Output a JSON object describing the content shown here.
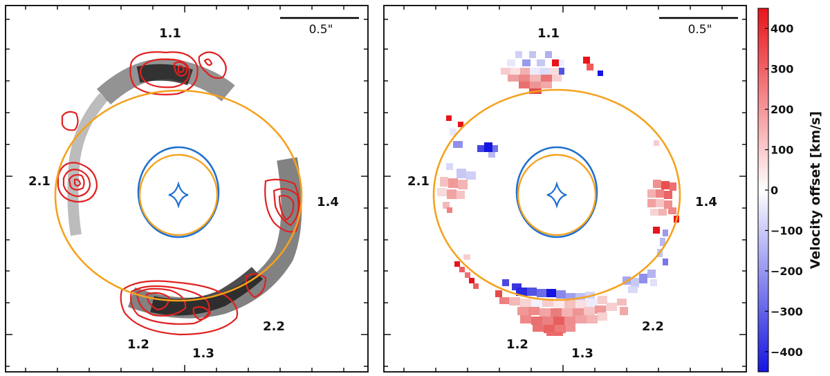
{
  "chart_data": [
    {
      "type": "image",
      "panel": "left",
      "description_ref": "lensed arc intensity map (greyscale) with red contours and lens model curves",
      "scale_bar_label": "0.5\"",
      "image_labels": [
        "1.1",
        "2.1",
        "1.4",
        "1.2",
        "1.3",
        "2.2"
      ],
      "curves": {
        "critical_outer": "orange",
        "caustic_outer": "blue",
        "critical_inner": "orange",
        "caustic_diamond": "blue"
      }
    },
    {
      "type": "heatmap",
      "panel": "right",
      "scale_bar_label": "0.5\"",
      "image_labels": [
        "1.1",
        "2.1",
        "1.4",
        "1.2",
        "1.3",
        "2.2"
      ],
      "colorbar": {
        "title": "Velocity offset [km/s]",
        "range": [
          -450,
          450
        ],
        "ticks": [
          400,
          300,
          200,
          100,
          0,
          -100,
          -200,
          -300,
          -400
        ],
        "tick_labels": [
          "400",
          "300",
          "200",
          "100",
          "0",
          "−100",
          "−200",
          "−300",
          "−400"
        ]
      }
    }
  ],
  "colors": {
    "critical": "#f4a21d",
    "caustic": "#1f6fd1",
    "contour": "#e02020",
    "positive": "#e8141b",
    "negative": "#1515e0"
  }
}
